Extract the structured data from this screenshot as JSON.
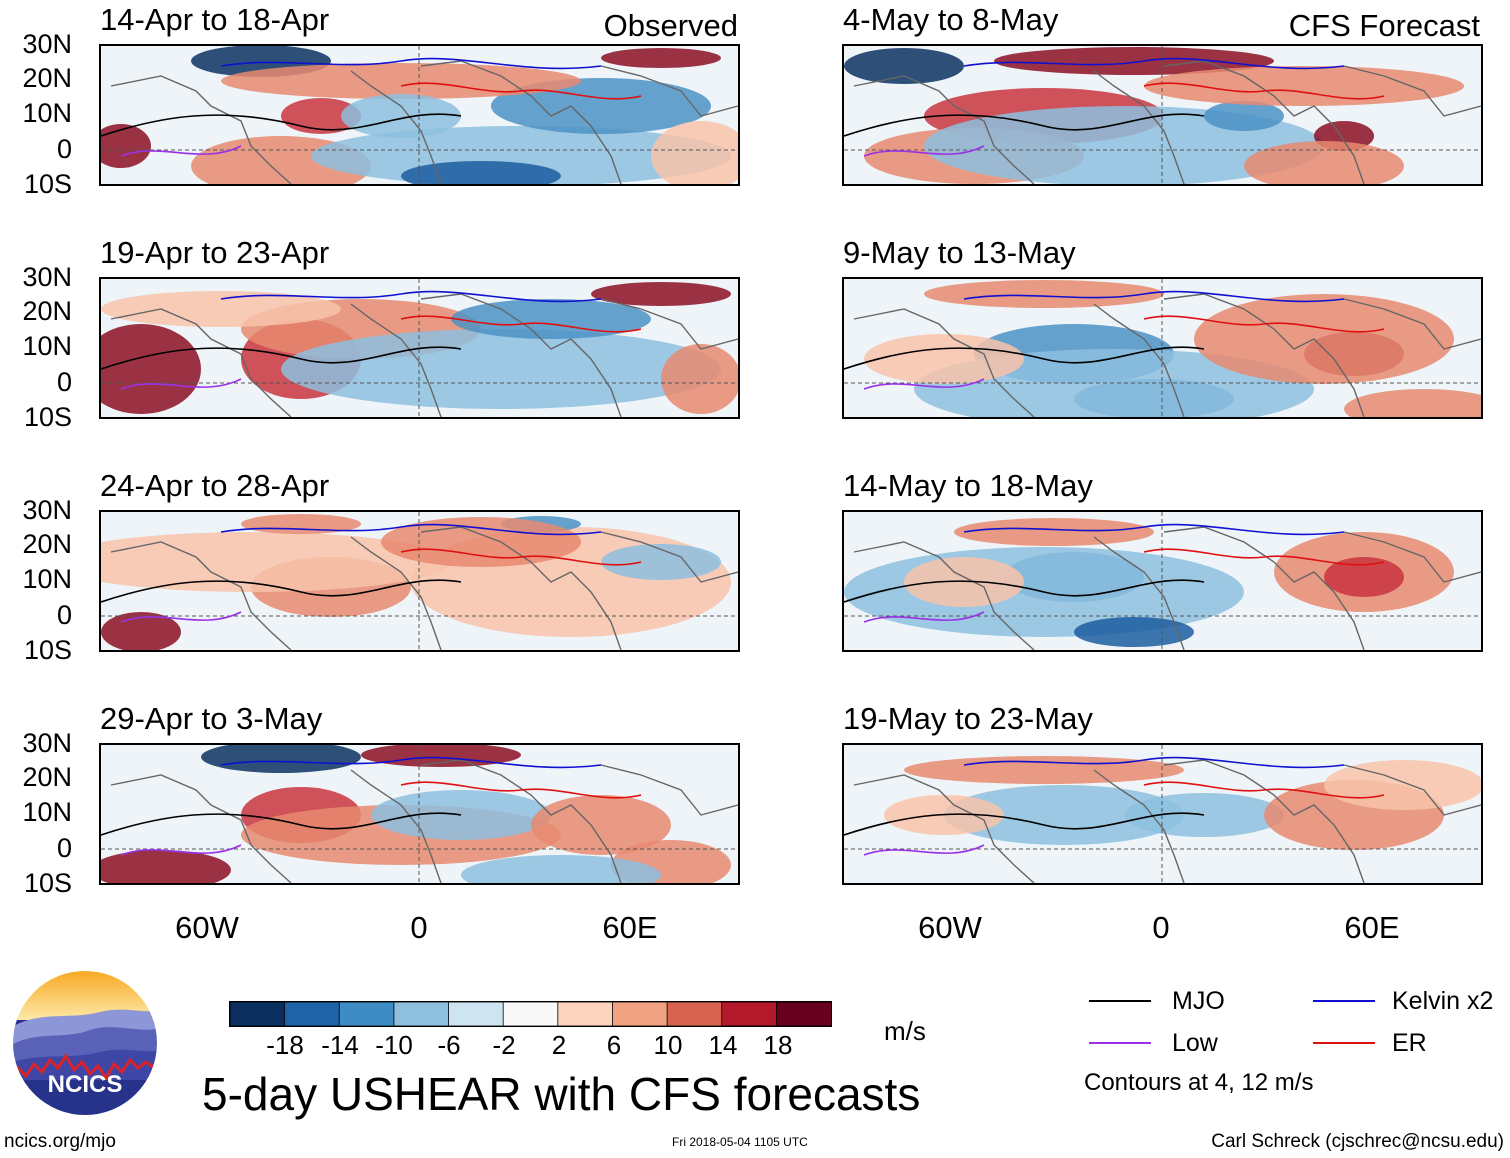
{
  "columns": [
    {
      "tag": "Observed",
      "panels": [
        {
          "title": "14-Apr to 18-Apr"
        },
        {
          "title": "19-Apr to 23-Apr"
        },
        {
          "title": "24-Apr to 28-Apr"
        },
        {
          "title": "29-Apr to 3-May"
        }
      ]
    },
    {
      "tag": "CFS Forecast",
      "panels": [
        {
          "title": "4-May to 8-May"
        },
        {
          "title": "9-May to 13-May"
        },
        {
          "title": "14-May to 18-May"
        },
        {
          "title": "19-May to 23-May"
        }
      ]
    }
  ],
  "lat_labels": [
    "30N",
    "20N",
    "10N",
    "0",
    "10S"
  ],
  "lon_labels": [
    "60W",
    "0",
    "60E"
  ],
  "colorbar": {
    "labels": [
      "-18",
      "-14",
      "-10",
      "-6",
      "-2",
      "2",
      "6",
      "10",
      "14",
      "18"
    ],
    "colors": [
      "#0a2f5e",
      "#1f62a8",
      "#3e8cc4",
      "#8ebfdf",
      "#cfe4f1",
      "#f8f8f8",
      "#fbd3be",
      "#f1a283",
      "#d86351",
      "#b3182b",
      "#67001f"
    ],
    "units": "m/s"
  },
  "title": "5-day USHEAR with CFS forecasts",
  "legend": {
    "items": [
      {
        "label": "MJO",
        "color": "#000000"
      },
      {
        "label": "Kelvin x2",
        "color": "#1010d0"
      },
      {
        "label": "Low",
        "color": "#9a32e6"
      },
      {
        "label": "ER",
        "color": "#e01010"
      }
    ],
    "note": "Contours at 4, 12 m/s"
  },
  "logo": {
    "text": "NCICS"
  },
  "footer": {
    "left": "ncics.org/mjo",
    "center": "Fri 2018-05-04 1105 UTC",
    "right": "Carl Schreck (cjschrec@ncsu.edu)"
  }
}
